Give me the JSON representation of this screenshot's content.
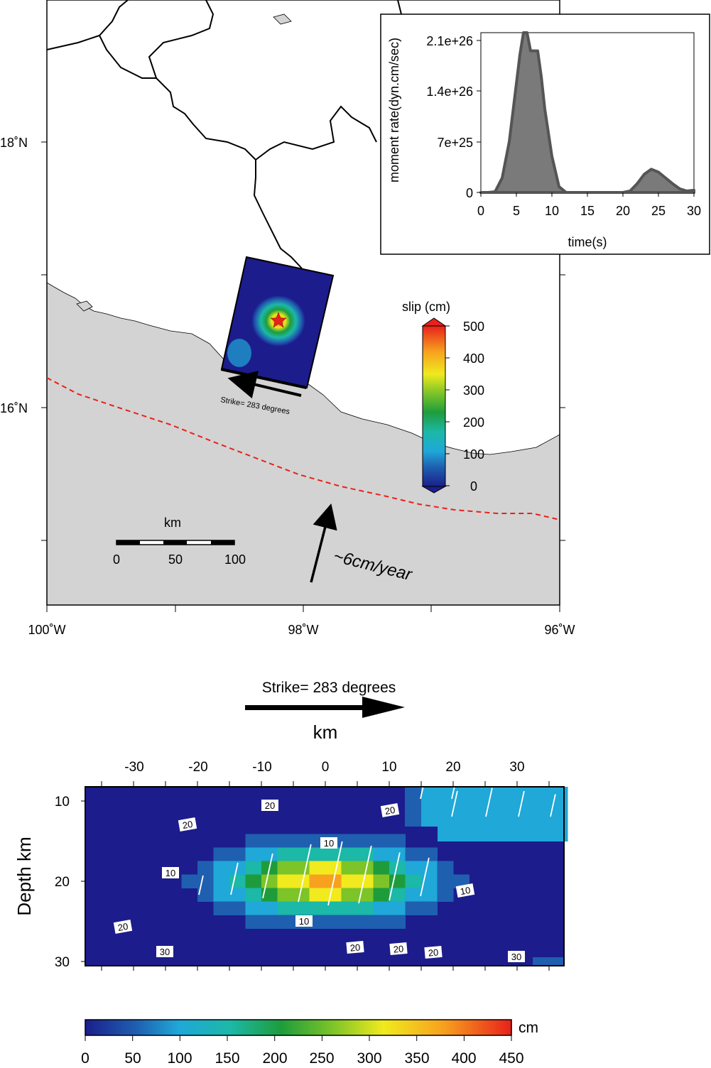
{
  "map": {
    "lat_labels": [
      "18˚N",
      "16˚N"
    ],
    "lon_labels": [
      "100˚W",
      "98˚W",
      "96˚W"
    ],
    "strike_label": "Strike= 283 degrees",
    "plate_motion_label": "~6cm/year",
    "scale_bar": {
      "title": "km",
      "ticks": [
        "0",
        "50",
        "100"
      ]
    },
    "slip_colorbar": {
      "title": "slip (cm)",
      "ticks": [
        "500",
        "400",
        "300",
        "200",
        "100",
        "0"
      ]
    },
    "colors": {
      "land": "#ffffff",
      "ocean": "#d3d3d3",
      "trench": "#e8211b",
      "fault_bg": "#1c1c8c"
    }
  },
  "inset": {
    "ylabel": "moment rate(dyn.cm/sec)",
    "xlabel": "time(s)",
    "yticks": [
      "2.1e+26",
      "1.4e+26",
      "7e+25",
      "0"
    ],
    "xticks": [
      "0",
      "5",
      "10",
      "15",
      "20",
      "25",
      "30"
    ]
  },
  "chart_data": {
    "type": "area",
    "title": "",
    "xlabel": "time(s)",
    "ylabel": "moment rate(dyn.cm/sec)",
    "xlim": [
      0,
      30
    ],
    "ylim": [
      0,
      2.2e+26
    ],
    "x": [
      0,
      1,
      2,
      3,
      4,
      5,
      5.5,
      6,
      6.5,
      7,
      8,
      8.5,
      9,
      10,
      11,
      12,
      14,
      16,
      18,
      20,
      21,
      22,
      23,
      24,
      25,
      26,
      27,
      28,
      29,
      30
    ],
    "values": [
      0,
      0,
      1e+24,
      2e+25,
      7e+25,
      1.5e+26,
      1.9e+26,
      2.2e+26,
      2.2e+26,
      1.95e+26,
      1.95e+26,
      1.6e+26,
      1.15e+26,
      5e+25,
      8e+24,
      0,
      0,
      0,
      0,
      0,
      2e+24,
      1.2e+25,
      2.5e+25,
      3.2e+25,
      2.8e+25,
      2e+25,
      1.2e+25,
      5e+24,
      2e+24,
      3e+24
    ]
  },
  "section": {
    "strike_label": "Strike= 283 degrees",
    "km_title": "km",
    "x_ticks": [
      "-30",
      "-20",
      "-10",
      "0",
      "10",
      "20",
      "30"
    ],
    "depth_title": "Depth km",
    "y_ticks": [
      "10",
      "20",
      "30"
    ],
    "contour_labels": [
      "20",
      "20",
      "20",
      "10",
      "10",
      "10",
      "10",
      "20",
      "30",
      "20",
      "20",
      "20",
      "30"
    ],
    "colorbar": {
      "unit": "cm",
      "ticks": [
        "0",
        "50",
        "100",
        "150",
        "200",
        "250",
        "300",
        "350",
        "400",
        "450"
      ]
    }
  }
}
